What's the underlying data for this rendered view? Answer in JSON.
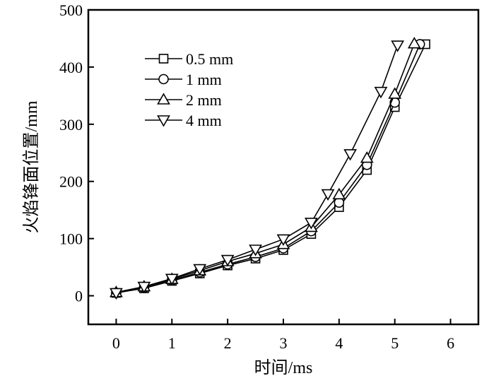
{
  "chart_data": {
    "type": "line",
    "xlabel": "时间/ms",
    "ylabel": "火焰锋面位置/mm",
    "xlim": [
      -0.5,
      6.5
    ],
    "ylim": [
      -50,
      500
    ],
    "xticks": [
      "0",
      "1",
      "2",
      "3",
      "4",
      "5",
      "6"
    ],
    "yticks": [
      "0",
      "100",
      "200",
      "300",
      "400",
      "500"
    ],
    "grid": false,
    "legend_position": "top-left",
    "series": [
      {
        "name": "0.5 mm",
        "marker": "square",
        "x": [
          0,
          0.5,
          1,
          1.5,
          2,
          2.5,
          3,
          3.5,
          4,
          4.5,
          5,
          5.55
        ],
        "y": [
          5,
          13,
          26,
          39,
          53,
          65,
          80,
          108,
          155,
          220,
          330,
          440
        ]
      },
      {
        "name": "1 mm",
        "marker": "circle",
        "x": [
          0,
          0.5,
          1,
          1.5,
          2,
          2.5,
          3,
          3.5,
          4,
          4.5,
          5,
          5.45
        ],
        "y": [
          5,
          14,
          27,
          41,
          55,
          68,
          83,
          113,
          163,
          229,
          338,
          440
        ]
      },
      {
        "name": "2 mm",
        "marker": "triangle-up",
        "x": [
          0,
          0.5,
          1,
          1.5,
          2,
          2.5,
          3,
          3.5,
          4,
          4.5,
          5,
          5.35
        ],
        "y": [
          6,
          16,
          29,
          44,
          60,
          74,
          90,
          120,
          177,
          241,
          353,
          441
        ]
      },
      {
        "name": "4 mm",
        "marker": "triangle-down",
        "x": [
          0,
          0.5,
          1,
          1.5,
          2,
          2.5,
          3,
          3.5,
          3.8,
          4.2,
          4.75,
          5.05
        ],
        "y": [
          5,
          16,
          30,
          47,
          63,
          81,
          99,
          128,
          178,
          248,
          357,
          438
        ]
      }
    ]
  }
}
